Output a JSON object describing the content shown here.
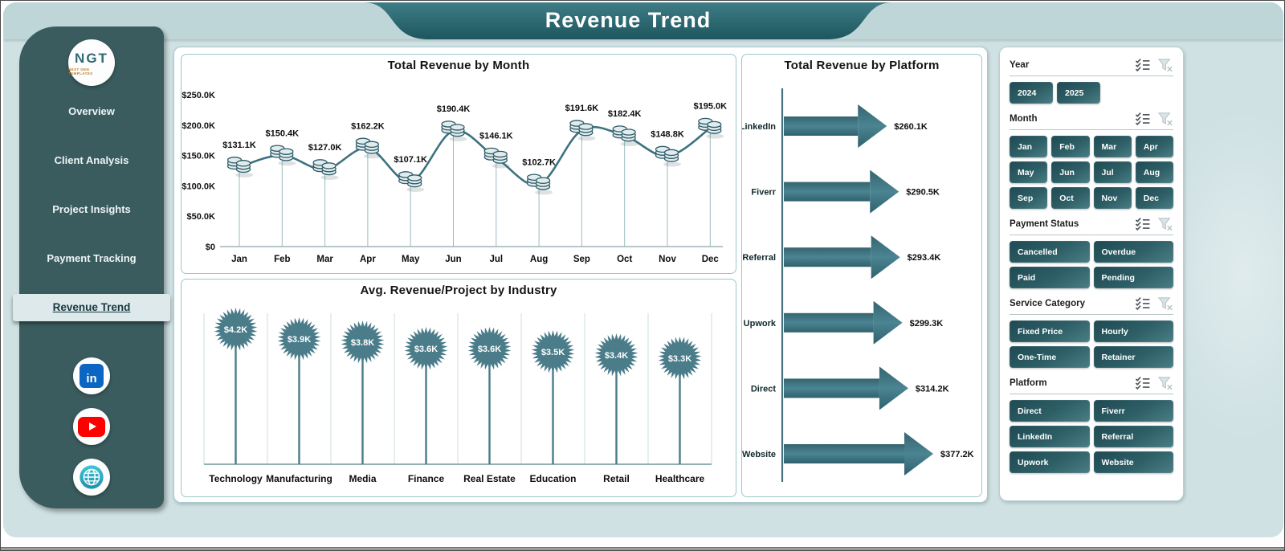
{
  "header": {
    "title": "Revenue Trend"
  },
  "sidebar": {
    "logo": {
      "text": "NGT",
      "subtext": "NEXT GEN TEMPLATES"
    },
    "items": [
      {
        "label": "Overview",
        "active": false
      },
      {
        "label": "Client Analysis",
        "active": false
      },
      {
        "label": "Project Insights",
        "active": false
      },
      {
        "label": "Payment Tracking",
        "active": false
      },
      {
        "label": "Revenue Trend",
        "active": true
      }
    ],
    "social_icons": [
      "linkedin",
      "youtube",
      "website-globe"
    ]
  },
  "colors": {
    "teal_dark": "#3a5c5f",
    "teal_accent": "#3f7383",
    "slicer_gradient_start": "#1f4a53",
    "slicer_gradient_end": "#4a7d85",
    "background": "#cfe1e3",
    "linkedin_blue": "#0a66c2",
    "youtube_red": "#ff0000"
  },
  "chart_data": [
    {
      "type": "line",
      "title": "Total Revenue by Month",
      "categories": [
        "Jan",
        "Feb",
        "Mar",
        "Apr",
        "May",
        "Jun",
        "Jul",
        "Aug",
        "Sep",
        "Oct",
        "Nov",
        "Dec"
      ],
      "values": [
        131.1,
        150.4,
        127.0,
        162.2,
        107.1,
        190.4,
        146.1,
        102.7,
        191.6,
        182.4,
        148.8,
        195.0
      ],
      "labels": [
        "$131.1K",
        "$150.4K",
        "$127.0K",
        "$162.2K",
        "$107.1K",
        "$190.4K",
        "$146.1K",
        "$102.7K",
        "$191.6K",
        "$182.4K",
        "$148.8K",
        "$195.0K"
      ],
      "ytick_labels": [
        "$250.0K",
        "$200.0K",
        "$150.0K",
        "$100.0K",
        "$50.0K",
        "$0"
      ],
      "ytick_values": [
        250,
        200,
        150,
        100,
        50,
        0
      ],
      "ylim": [
        0,
        250
      ],
      "marker": "coin-stack",
      "grid": "drop-lines",
      "legend": "none"
    },
    {
      "type": "lollipop",
      "title": "Avg. Revenue/Project  by Industry",
      "categories": [
        "Technology",
        "Manufacturing",
        "Media",
        "Finance",
        "Real Estate",
        "Education",
        "Retail",
        "Healthcare"
      ],
      "values": [
        4.2,
        3.9,
        3.8,
        3.6,
        3.6,
        3.5,
        3.4,
        3.3
      ],
      "labels": [
        "$4.2K",
        "$3.9K",
        "$3.8K",
        "$3.6K",
        "$3.6K",
        "$3.5K",
        "$3.4K",
        "$3.3K"
      ],
      "marker": "starburst-badge",
      "grid": "category-boundaries",
      "legend": "none"
    },
    {
      "type": "arrow-bar",
      "title": "Total Revenue by Platform",
      "categories": [
        "LinkedIn",
        "Fiverr",
        "Referral",
        "Upwork",
        "Direct",
        "Website"
      ],
      "values": [
        260.1,
        290.5,
        293.4,
        299.3,
        314.2,
        377.2
      ],
      "labels": [
        "$260.1K",
        "$290.5K",
        "$293.4K",
        "$299.3K",
        "$314.2K",
        "$377.2K"
      ],
      "orientation": "horizontal",
      "xlim": [
        0,
        377.2
      ],
      "legend": "none"
    }
  ],
  "filters": {
    "sections": [
      {
        "name": "Year",
        "cols": "year",
        "options": [
          "2024",
          "2025"
        ]
      },
      {
        "name": "Month",
        "cols": "4",
        "options": [
          "Jan",
          "Feb",
          "Mar",
          "Apr",
          "May",
          "Jun",
          "Jul",
          "Aug",
          "Sep",
          "Oct",
          "Nov",
          "Dec"
        ]
      },
      {
        "name": "Payment Status",
        "cols": "2",
        "options": [
          "Cancelled",
          "Overdue",
          "Paid",
          "Pending"
        ]
      },
      {
        "name": "Service Category",
        "cols": "2",
        "options": [
          "Fixed Price",
          "Hourly",
          "One-Time",
          "Retainer"
        ]
      },
      {
        "name": "Platform",
        "cols": "2",
        "options": [
          "Direct",
          "Fiverr",
          "LinkedIn",
          "Referral",
          "Upwork",
          "Website"
        ]
      }
    ]
  }
}
